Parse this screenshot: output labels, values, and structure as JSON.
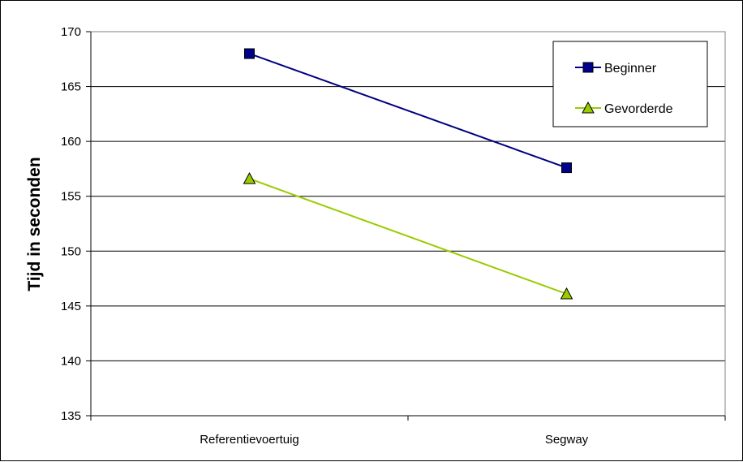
{
  "chart_data": {
    "type": "line",
    "categories": [
      "Referentievoertuig",
      "Segway"
    ],
    "series": [
      {
        "name": "Beginner",
        "values": [
          168.0,
          157.6
        ],
        "color": "#000080",
        "marker": "square",
        "marker_color": "#00008b"
      },
      {
        "name": "Gevorderde",
        "values": [
          156.6,
          146.1
        ],
        "color": "#99cc00",
        "marker": "triangle",
        "marker_color": "#99cc00"
      }
    ],
    "title": "",
    "xlabel": "",
    "ylabel": "Tijd in seconden",
    "ylim": [
      135,
      170
    ],
    "yticks": [
      135,
      140,
      145,
      150,
      155,
      160,
      165,
      170
    ],
    "grid": true,
    "legend_position": "top-right"
  }
}
